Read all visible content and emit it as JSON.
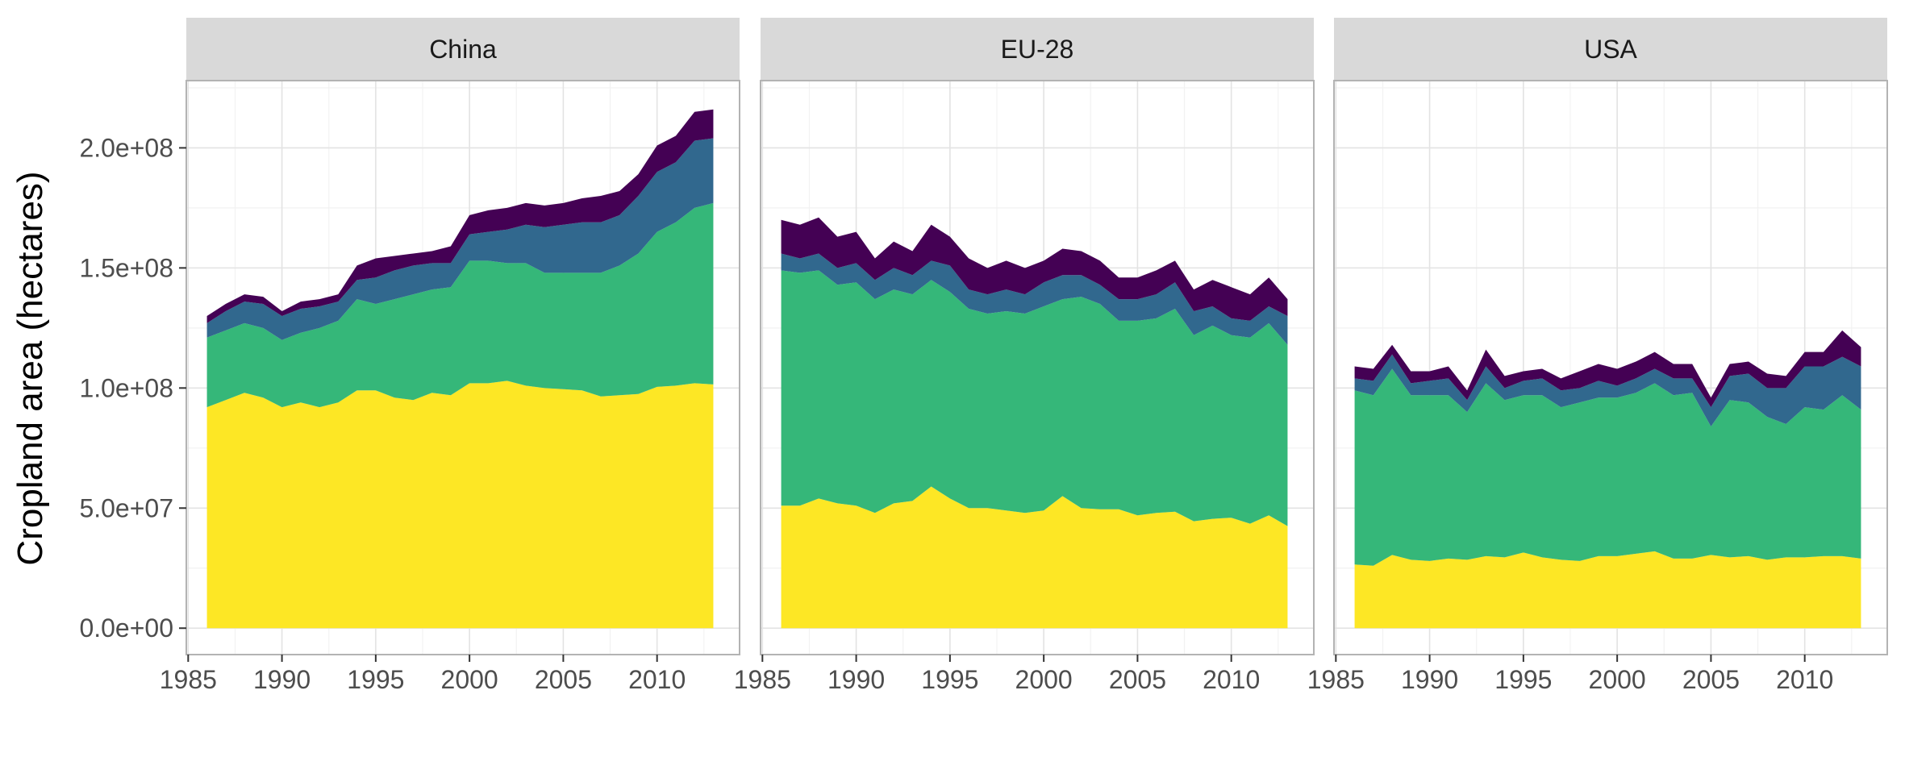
{
  "chart_data": {
    "type": "area",
    "stacked": true,
    "ylabel": "Cropland area (hectares)",
    "xlabel": "",
    "ylim": [
      -11000000,
      228000000
    ],
    "xlim": [
      1984.9,
      2014.4
    ],
    "x_ticks": [
      1985,
      1990,
      1995,
      2000,
      2005,
      2010
    ],
    "y_ticks": [
      0,
      50000000,
      100000000,
      150000000,
      200000000
    ],
    "y_tick_labels": [
      "0.0e+00",
      "5.0e+07",
      "1.0e+08",
      "1.5e+08",
      "2.0e+08"
    ],
    "grid": true,
    "legend": "none",
    "colors": {
      "layer1": "#FDE725",
      "layer2": "#35B779",
      "layer3": "#31688E",
      "layer4": "#440154",
      "strip_fill": "#D9D9D9",
      "panel_border": "#B3B3B3",
      "grid_major": "#E3E3E3",
      "grid_minor": "#F2F2F2"
    },
    "x": [
      1986,
      1987,
      1988,
      1989,
      1990,
      1991,
      1992,
      1993,
      1994,
      1995,
      1996,
      1997,
      1998,
      1999,
      2000,
      2001,
      2002,
      2003,
      2004,
      2005,
      2006,
      2007,
      2008,
      2009,
      2010,
      2011,
      2012,
      2013
    ],
    "panels": [
      {
        "name": "China",
        "cumulative_tops": [
          [
            92,
            95,
            98,
            96,
            92,
            94,
            92,
            94,
            99,
            99,
            96,
            95,
            98,
            97,
            102,
            102,
            103,
            101,
            100,
            99.5,
            99,
            96.5,
            97,
            97.5,
            100.5,
            101,
            102,
            101.5
          ],
          [
            121,
            124,
            127,
            125,
            120,
            123,
            125,
            128,
            137,
            135,
            137,
            139,
            141,
            142,
            153,
            153,
            152,
            152,
            148,
            148,
            148,
            148,
            151,
            156,
            165,
            169,
            175,
            177
          ],
          [
            127,
            132,
            136,
            135,
            130,
            133,
            134,
            136,
            145,
            146,
            149,
            151,
            152,
            152,
            164,
            165,
            166,
            168,
            167,
            168,
            169,
            169,
            172,
            180,
            190,
            194,
            203,
            204
          ],
          [
            130,
            135,
            139,
            138,
            132,
            136,
            137,
            139,
            151,
            154,
            155,
            156,
            157,
            159,
            172,
            174,
            175,
            177,
            176,
            177,
            179,
            180,
            182,
            189,
            201,
            205,
            215,
            216
          ]
        ]
      },
      {
        "name": "EU-28",
        "cumulative_tops": [
          [
            51,
            51,
            54,
            52,
            51,
            48,
            52,
            53,
            59,
            54,
            50,
            50,
            49,
            48,
            49,
            55,
            50,
            49.5,
            49.5,
            47,
            48,
            48.5,
            44.5,
            45.5,
            46,
            43.5,
            47,
            42.5
          ],
          [
            149,
            148,
            149,
            143,
            144,
            137,
            141,
            139,
            145,
            140,
            133,
            131,
            132,
            131,
            134,
            137,
            138,
            135,
            128,
            128,
            129,
            133,
            122,
            126,
            122,
            121,
            127,
            118
          ],
          [
            156,
            154,
            156,
            150,
            152,
            145,
            150,
            147,
            153,
            151,
            141,
            139,
            141,
            139,
            144,
            147,
            147,
            143,
            137,
            137,
            139,
            144,
            132,
            134,
            129,
            128,
            134,
            130
          ],
          [
            170,
            168,
            171,
            163,
            165,
            154,
            161,
            157,
            168,
            163,
            154,
            150,
            153,
            150,
            153,
            158,
            157,
            153,
            146,
            146,
            149,
            153,
            141,
            145,
            142,
            139,
            146,
            137
          ]
        ]
      },
      {
        "name": "USA",
        "cumulative_tops": [
          [
            26.5,
            26,
            30.5,
            28.5,
            28,
            29,
            28.5,
            30,
            29.5,
            31.5,
            29.5,
            28.5,
            28,
            30,
            30,
            31,
            32,
            29,
            29,
            30.5,
            29.5,
            30,
            28.5,
            29.5,
            29.5,
            30,
            30,
            29
          ],
          [
            99,
            97,
            108,
            97,
            97,
            97,
            90,
            102,
            95,
            97,
            97,
            92,
            94,
            96,
            96,
            98,
            102,
            97,
            98,
            84,
            95,
            94,
            88,
            85,
            92,
            91,
            97,
            91
          ],
          [
            104,
            103,
            114,
            102,
            103,
            104,
            95,
            109,
            100,
            103,
            104,
            99,
            100,
            103,
            101,
            104,
            108,
            104,
            104,
            92,
            105,
            106,
            100,
            100,
            109,
            109,
            113,
            109
          ],
          [
            109,
            108,
            118,
            107,
            107,
            109,
            99,
            116,
            105,
            107,
            108,
            104,
            107,
            110,
            108,
            111,
            115,
            110,
            110,
            96,
            110,
            111,
            106,
            105,
            115,
            115,
            124,
            117
          ]
        ]
      }
    ]
  }
}
